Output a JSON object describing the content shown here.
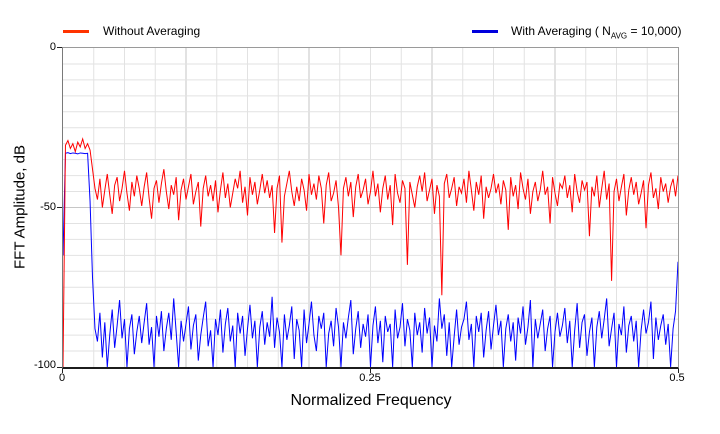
{
  "legend": {
    "without": {
      "label": "Without Averaging",
      "color": "#ff3300"
    },
    "with": {
      "pre": "With Averaging ( N",
      "sub": "AVG",
      "post": " = 10,000)",
      "color": "#0000dd"
    }
  },
  "axes": {
    "y": {
      "title": "FFT Amplitude, dB",
      "ticks": [
        {
          "label": "0",
          "value": 0
        },
        {
          "label": "-50",
          "value": -50
        },
        {
          "label": "-100",
          "value": -100
        }
      ],
      "minor_step": 5,
      "major_step": 50
    },
    "x": {
      "title": "Normalized Frequency",
      "ticks": [
        {
          "label": "0",
          "value": 0
        },
        {
          "label": "0.25",
          "value": 0.25
        },
        {
          "label": "0.5",
          "value": 0.5
        }
      ],
      "minor_step": 0.025,
      "major_step": 0.1
    }
  },
  "grid": {
    "minor_color": "#e2e2e2",
    "major_color": "#c6c6c6",
    "on": true
  },
  "chart_data": {
    "type": "line",
    "title": "",
    "xlabel": "Normalized Frequency",
    "ylabel": "FFT Amplitude, dB",
    "xlim": [
      0,
      0.5
    ],
    "ylim": [
      -100,
      0
    ],
    "legend_position": "top",
    "x_start": 0,
    "x_step": 0.002,
    "series": [
      {
        "name": "Without Averaging",
        "color": "#ff0000",
        "values": [
          -100,
          -30.5,
          -29,
          -31.5,
          -30,
          -32.5,
          -29.5,
          -31,
          -28.5,
          -31.5,
          -30,
          -32,
          -38,
          -44,
          -47.5,
          -41,
          -50,
          -44.5,
          -39.5,
          -46,
          -52,
          -43,
          -40.5,
          -48,
          -44,
          -38.5,
          -45.5,
          -51,
          -42,
          -46.5,
          -40,
          -44,
          -49.5,
          -43.5,
          -39,
          -47,
          -53.5,
          -44,
          -41.5,
          -48.5,
          -42.5,
          -38,
          -45,
          -50.5,
          -43,
          -46,
          -40.5,
          -54,
          -44.5,
          -41,
          -47.5,
          -43.5,
          -39.5,
          -49,
          -45,
          -42,
          -56,
          -44,
          -40,
          -46.5,
          -43,
          -48,
          -41.5,
          -51.5,
          -44.5,
          -39,
          -47,
          -42.5,
          -50,
          -45.5,
          -41,
          -44,
          -38.5,
          -48.5,
          -43.5,
          -52.5,
          -40.5,
          -46,
          -42,
          -49,
          -44.5,
          -39.5,
          -45.5,
          -41.5,
          -47,
          -43,
          -58,
          -44,
          -40,
          -61,
          -46.5,
          -42.5,
          -38.5,
          -45,
          -49.5,
          -43.5,
          -48,
          -41,
          -44.5,
          -51,
          -39.5,
          -46,
          -42.5,
          -47.5,
          -40,
          -44,
          -55,
          -43,
          -39,
          -48,
          -45.5,
          -41.5,
          -50,
          -65,
          -44,
          -40.5,
          -46.5,
          -42,
          -53,
          -43.5,
          -39.5,
          -47,
          -44.5,
          -41,
          -49,
          -45,
          -38.5,
          -46.5,
          -42.5,
          -51.5,
          -44,
          -40,
          -47.5,
          -43,
          -55.5,
          -39.5,
          -45.5,
          -48.5,
          -41.5,
          -44,
          -68,
          -42,
          -46,
          -50,
          -43.5,
          -40,
          -45,
          -39,
          -48,
          -44.5,
          -41,
          -52,
          -43,
          -46.5,
          -77.5,
          -42.5,
          -39.5,
          -47,
          -44,
          -40.5,
          -49.5,
          -43.5,
          -45.5,
          -41,
          -48.5,
          -38.5,
          -44.5,
          -51,
          -42,
          -46,
          -40,
          -53.5,
          -43.5,
          -47,
          -44,
          -39.5,
          -45.5,
          -42.5,
          -49,
          -41.5,
          -44.5,
          -57,
          -40.5,
          -46.5,
          -43,
          -50.5,
          -39,
          -44,
          -47.5,
          -41,
          -52,
          -45,
          -42,
          -48,
          -44.5,
          -38.5,
          -46,
          -43.5,
          -55,
          -40.5,
          -45.5,
          -49.5,
          -42.5,
          -44,
          -40,
          -47,
          -43,
          -51.5,
          -39.5,
          -45,
          -48.5,
          -41.5,
          -44.5,
          -42,
          -59,
          -43.5,
          -46.5,
          -40,
          -50,
          -44,
          -38.5,
          -47.5,
          -42.5,
          -73,
          -45,
          -41,
          -48,
          -43.5,
          -39.5,
          -52.5,
          -44.5,
          -40.5,
          -46,
          -42,
          -49,
          -45.5,
          -41.5,
          -56.5,
          -43,
          -39,
          -47,
          -44,
          -50.5,
          -40.5,
          -45,
          -42.5,
          -48.5,
          -43.5,
          -41,
          -46.5,
          -40
        ]
      },
      {
        "name": "With Averaging ( N_AVG = 10,000)",
        "color": "#0000ff",
        "values": [
          -65,
          -33,
          -32.8,
          -33.1,
          -32.9,
          -33,
          -33.2,
          -32.9,
          -33,
          -33.1,
          -33,
          -48,
          -72,
          -88,
          -92,
          -83,
          -97,
          -86,
          -100,
          -90,
          -82,
          -94,
          -87,
          -79,
          -91,
          -85,
          -100,
          -88,
          -83.5,
          -96,
          -89,
          -84,
          -92.5,
          -86,
          -80,
          -93,
          -87.5,
          -100,
          -84,
          -90.5,
          -82.5,
          -95,
          -88,
          -83,
          -91.5,
          -78.5,
          -89,
          -100,
          -85.5,
          -92,
          -86.5,
          -81,
          -94.5,
          -87,
          -83.5,
          -98,
          -90,
          -84.5,
          -79.5,
          -93.5,
          -88.5,
          -100,
          -85,
          -90,
          -82,
          -95.5,
          -86.5,
          -81.5,
          -92,
          -87,
          -100,
          -83,
          -89.5,
          -84,
          -96.5,
          -88,
          -80.5,
          -91,
          -85.5,
          -100,
          -87.5,
          -82.5,
          -93,
          -86,
          -90.5,
          -78,
          -94,
          -84.5,
          -89,
          -100,
          -83.5,
          -91.5,
          -87,
          -81,
          -97.5,
          -85,
          -88.5,
          -100,
          -82,
          -92.5,
          -86.5,
          -79.5,
          -90,
          -95,
          -84,
          -88,
          -83,
          -100,
          -89.5,
          -85.5,
          -93.5,
          -81.5,
          -87.5,
          -100,
          -86,
          -91,
          -84.5,
          -79,
          -96,
          -88,
          -82.5,
          -94,
          -86.5,
          -90.5,
          -83.5,
          -100,
          -87,
          -81,
          -92.5,
          -85.5,
          -98.5,
          -84,
          -89,
          -86.5,
          -100,
          -82,
          -91,
          -87.5,
          -80,
          -93.5,
          -85,
          -88.5,
          -100,
          -83,
          -90,
          -86,
          -95.5,
          -81.5,
          -89.5,
          -84.5,
          -100,
          -87,
          -92,
          -78.5,
          -88,
          -83.5,
          -96.5,
          -86,
          -100,
          -90.5,
          -82,
          -93,
          -87.5,
          -85,
          -79.5,
          -91.5,
          -86.5,
          -100,
          -84,
          -89,
          -83,
          -97,
          -88.5,
          -82.5,
          -94.5,
          -87,
          -80.5,
          -90,
          -85.5,
          -100,
          -88,
          -83.5,
          -92,
          -86,
          -98,
          -84.5,
          -89.5,
          -81,
          -93,
          -87.5,
          -79,
          -100,
          -85,
          -91,
          -86.5,
          -82,
          -95,
          -88,
          -84,
          -100,
          -89,
          -83,
          -90.5,
          -87,
          -81.5,
          -92.5,
          -85.5,
          -100,
          -88.5,
          -80,
          -94,
          -86,
          -83.5,
          -96.5,
          -89,
          -84.5,
          -100,
          -87.5,
          -82.5,
          -91,
          -85,
          -78.5,
          -93.5,
          -88,
          -83,
          -100,
          -86.5,
          -90,
          -81,
          -95.5,
          -87,
          -84,
          -92,
          -85.5,
          -100,
          -88.5,
          -82,
          -89.5,
          -86,
          -79.5,
          -97.5,
          -84.5,
          -91.5,
          -87,
          -83.5,
          -93,
          -86.5,
          -100,
          -88,
          -82.5,
          -67
        ]
      }
    ]
  }
}
